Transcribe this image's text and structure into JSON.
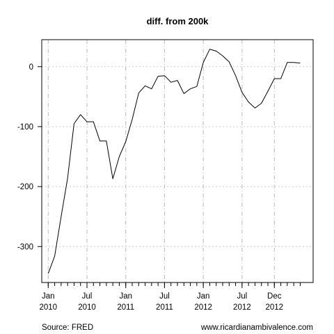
{
  "chart_data": {
    "type": "line",
    "title": "diff. from 200k",
    "xlabel": "",
    "ylabel": "",
    "x_unit": "month",
    "x": [
      "2010-01",
      "2010-02",
      "2010-03",
      "2010-04",
      "2010-05",
      "2010-06",
      "2010-07",
      "2010-08",
      "2010-09",
      "2010-10",
      "2010-11",
      "2010-12",
      "2011-01",
      "2011-02",
      "2011-03",
      "2011-04",
      "2011-05",
      "2011-06",
      "2011-07",
      "2011-08",
      "2011-09",
      "2011-10",
      "2011-11",
      "2011-12",
      "2012-01",
      "2012-02",
      "2012-03",
      "2012-04",
      "2012-05",
      "2012-06",
      "2012-07",
      "2012-08",
      "2012-09",
      "2012-10",
      "2012-11",
      "2012-12",
      "2013-01",
      "2013-02",
      "2013-03",
      "2013-04"
    ],
    "series": [
      {
        "values": [
          -345,
          -316,
          -250,
          -186,
          -95,
          -80,
          -92,
          -92,
          -124,
          -124,
          -187,
          -150,
          -125,
          -88,
          -44,
          -32,
          -37,
          -16,
          -15,
          -26,
          -23,
          -45,
          -37,
          -33,
          7,
          29,
          26,
          18,
          8,
          -15,
          -43,
          -59,
          -69,
          -61,
          -41,
          -20,
          -20,
          7,
          7,
          6
        ]
      }
    ],
    "xlim": [
      "2009-12",
      "2013-06"
    ],
    "ylim": [
      -360,
      45
    ],
    "yticks": [
      0,
      -100,
      -200,
      -300
    ],
    "ytick_labels": [
      "0",
      "-100",
      "-200",
      "-300"
    ],
    "xticks": [
      {
        "at": "2010-01",
        "line1": "Jan",
        "line2": "2010"
      },
      {
        "at": "2010-07",
        "line1": "Jul",
        "line2": "2010"
      },
      {
        "at": "2011-01",
        "line1": "Jan",
        "line2": "2011"
      },
      {
        "at": "2011-07",
        "line1": "Jul",
        "line2": "2011"
      },
      {
        "at": "2012-01",
        "line1": "Jan",
        "line2": "2012"
      },
      {
        "at": "2012-07",
        "line1": "Jul",
        "line2": "2012"
      },
      {
        "at": "2012-12",
        "line1": "Dec",
        "line2": "2012"
      }
    ],
    "grid": true,
    "legend": "none"
  },
  "footer": {
    "source": "Source: FRED",
    "site": "www.ricardianambivalence.com"
  },
  "colors": {
    "line": "#000000",
    "grid": "#cccccc",
    "vgrid": "#bbbbbb"
  }
}
